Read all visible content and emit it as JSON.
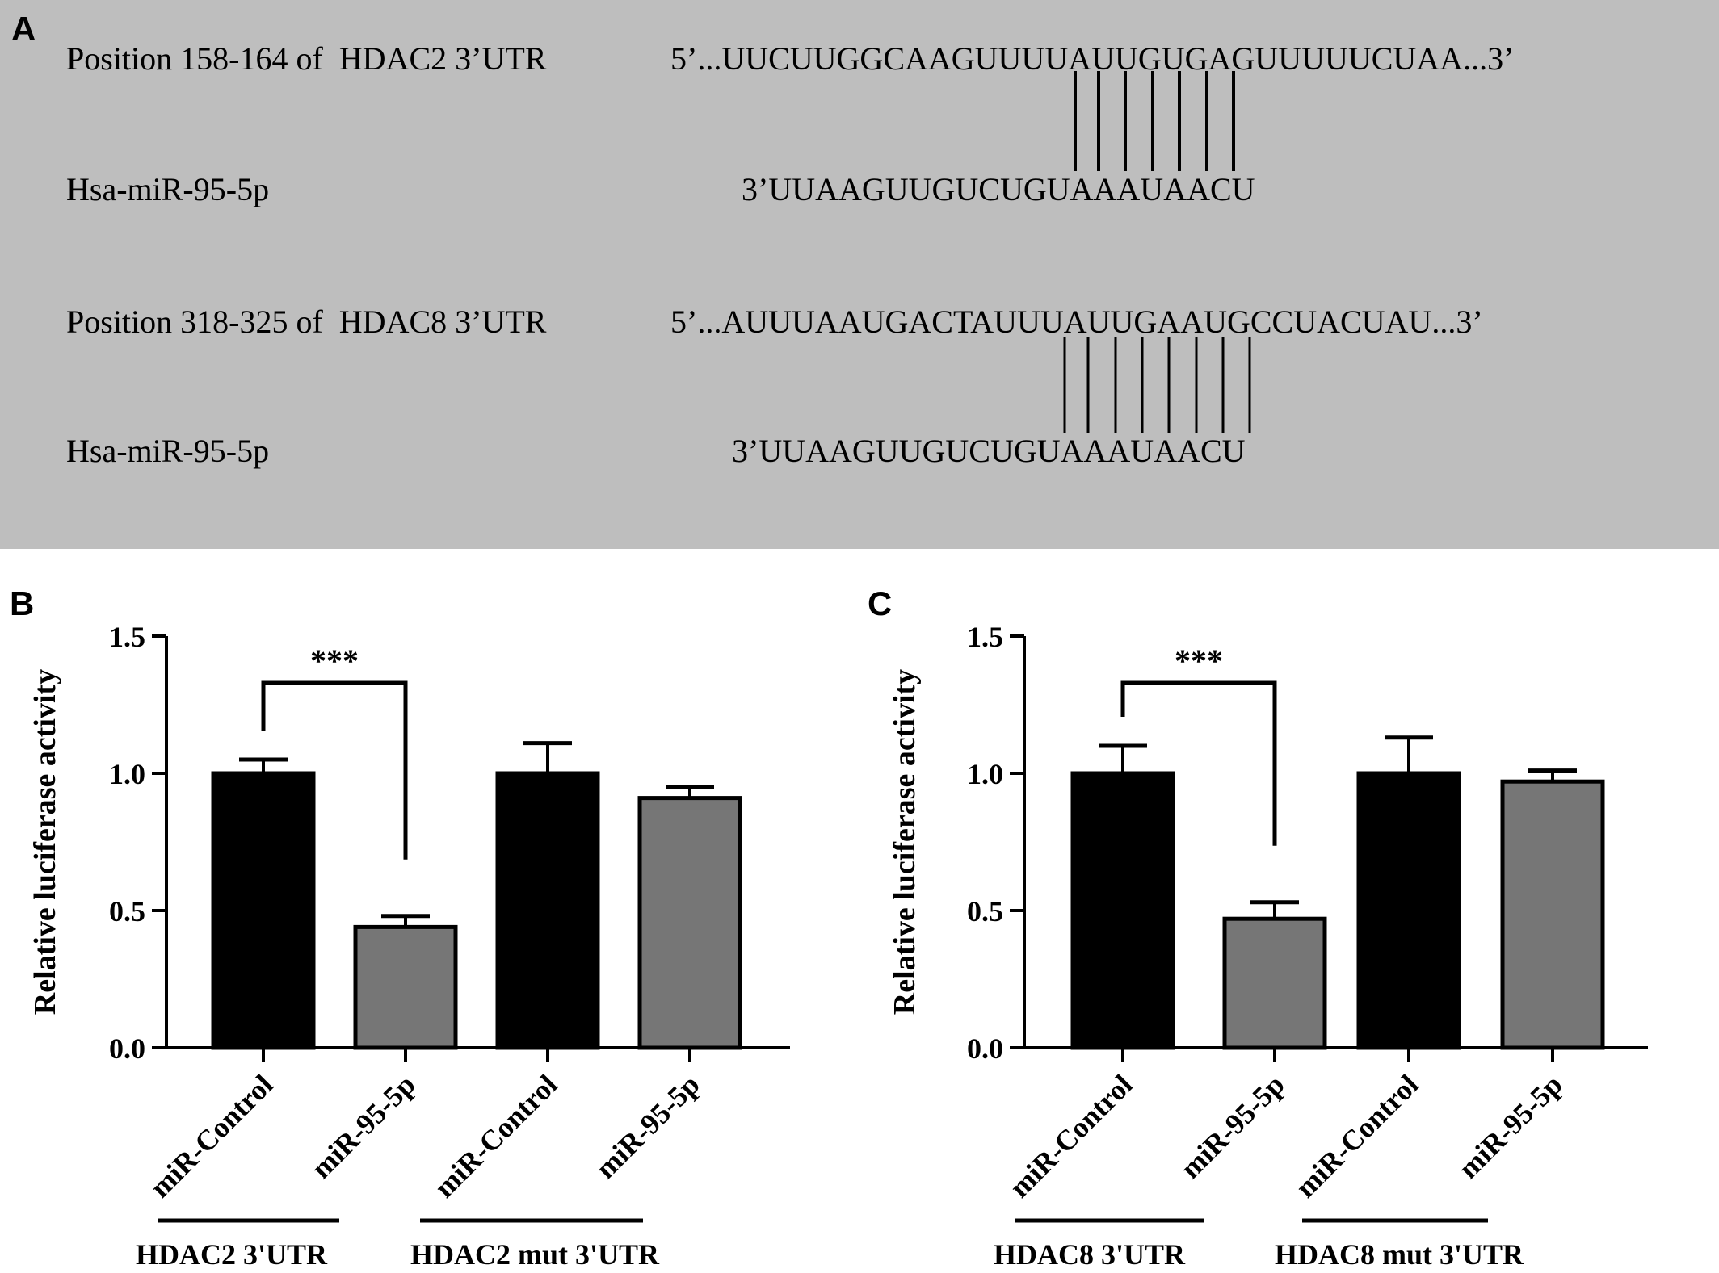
{
  "panel_a": {
    "letter": "A",
    "rows": [
      {
        "label": "Position 158-164 of  HDAC2 3’UTR",
        "sequence": "5’...UUCUUGGCAAGUUUUAUUGUGAGUUUUUCUAA...3’"
      },
      {
        "label": "Hsa-miR-95-5p",
        "sequence": "3’UUAAGUUGUCUGUAAAUAACU"
      },
      {
        "label": "Position 318-325 of  HDAC8 3’UTR",
        "sequence": "5’...AUUUAAUGACTAUUUAUUGAAUGCCUACUAU...3’"
      },
      {
        "label": "Hsa-miR-95-5p",
        "sequence": "3’UUAAGUUGUCUGUAAAUAACU"
      }
    ]
  },
  "colors": {
    "panel_a_bg": "#bebebe",
    "control_bar": "#000000",
    "mir_bar": "#767676"
  },
  "chart_data": [
    {
      "panel": "B",
      "type": "bar",
      "ylabel": "Relative luciferase activity",
      "ylim": [
        0,
        1.5
      ],
      "yticks": [
        "0.0",
        "0.5",
        "1.0",
        "1.5"
      ],
      "categories": [
        "miR-Control",
        "miR-95-5p",
        "miR-Control",
        "miR-95-5p"
      ],
      "values": [
        1.0,
        0.44,
        1.0,
        0.91
      ],
      "errors": [
        0.05,
        0.04,
        0.11,
        0.04
      ],
      "groups": [
        "HDAC2 3'UTR",
        "HDAC2 mut 3'UTR"
      ],
      "significance": "***"
    },
    {
      "panel": "C",
      "type": "bar",
      "ylabel": "Relative luciferase activity",
      "ylim": [
        0,
        1.5
      ],
      "yticks": [
        "0.0",
        "0.5",
        "1.0",
        "1.5"
      ],
      "categories": [
        "miR-Control",
        "miR-95-5p",
        "miR-Control",
        "miR-95-5p"
      ],
      "values": [
        1.0,
        0.47,
        1.0,
        0.97
      ],
      "errors": [
        0.1,
        0.06,
        0.13,
        0.04
      ],
      "groups": [
        "HDAC8 3'UTR",
        "HDAC8 mut 3'UTR"
      ],
      "significance": "***"
    }
  ]
}
